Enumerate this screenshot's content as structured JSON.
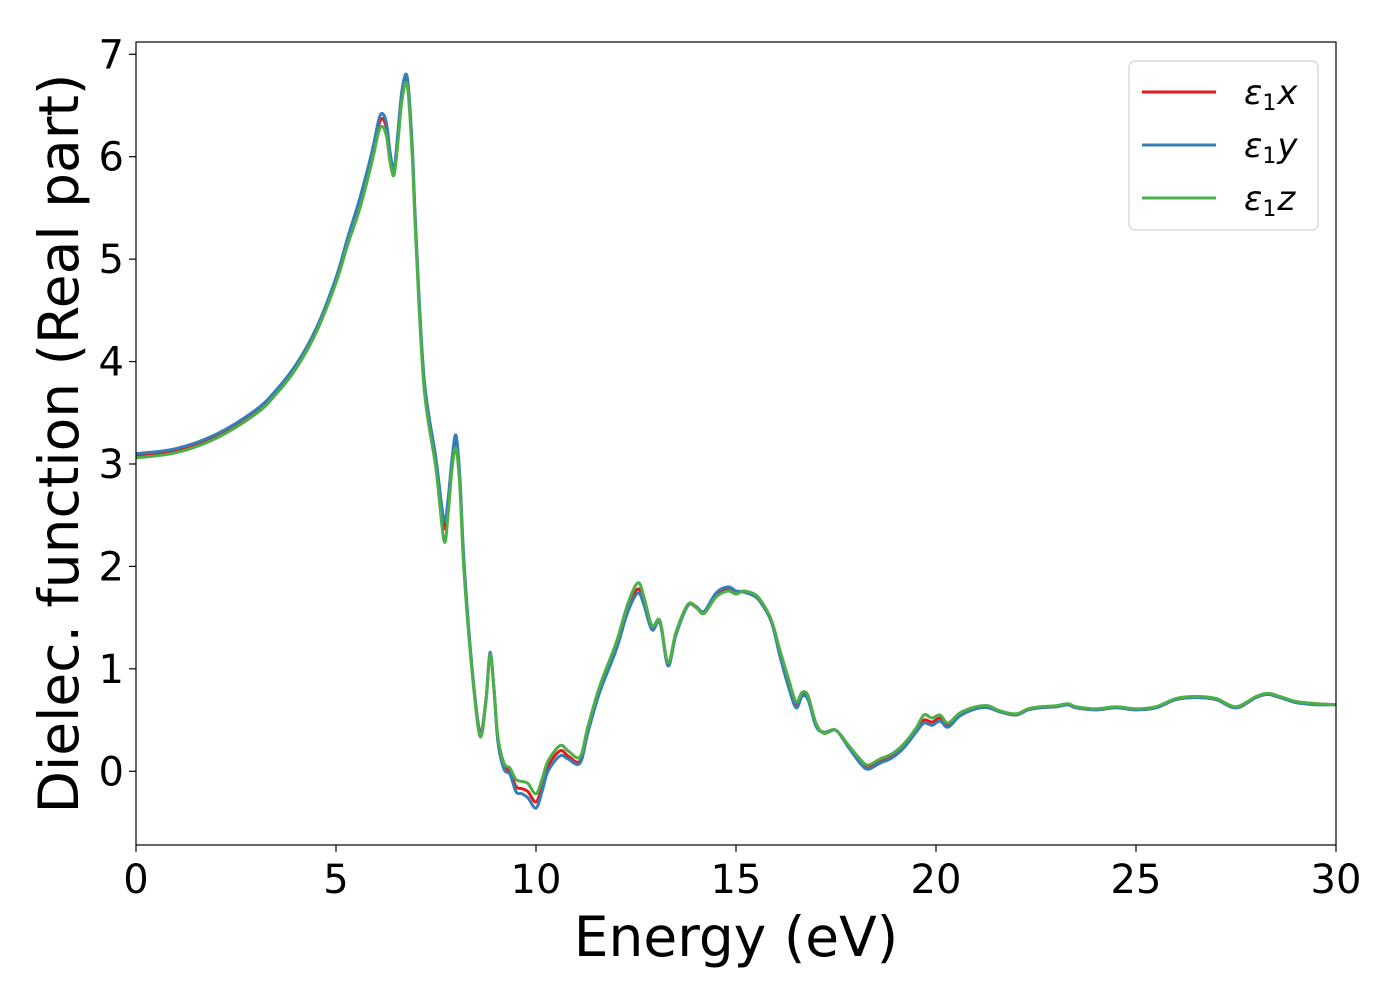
{
  "chart_data": {
    "type": "line",
    "xlabel": "Energy (eV)",
    "ylabel": "Dielec. function (Real part)",
    "xlim": [
      0,
      30
    ],
    "ylim": [
      -0.72,
      7.12
    ],
    "xticks": [
      0,
      5,
      10,
      15,
      20,
      25,
      30
    ],
    "yticks": [
      0,
      1,
      2,
      3,
      4,
      5,
      6,
      7
    ],
    "grid": false,
    "legend_position": "top-right",
    "series": [
      {
        "name": "ε1x",
        "symbol": "ε",
        "sub": "1",
        "suffix": "x",
        "color": "#e41a1c",
        "x": [
          0,
          1,
          2,
          3,
          3.5,
          4,
          4.5,
          5,
          5.3,
          5.6,
          5.9,
          6.1,
          6.25,
          6.35,
          6.45,
          6.55,
          6.65,
          6.78,
          6.9,
          7.0,
          7.2,
          7.5,
          7.7,
          7.8,
          7.9,
          8.0,
          8.1,
          8.2,
          8.4,
          8.6,
          8.75,
          8.85,
          8.95,
          9.05,
          9.2,
          9.35,
          9.5,
          9.65,
          9.8,
          10.0,
          10.15,
          10.3,
          10.6,
          10.8,
          11.1,
          11.3,
          11.6,
          12.0,
          12.3,
          12.55,
          12.7,
          12.9,
          13.1,
          13.3,
          13.5,
          13.8,
          14.0,
          14.2,
          14.5,
          14.8,
          15.0,
          15.2,
          15.5,
          15.7,
          15.9,
          16.1,
          16.3,
          16.5,
          16.65,
          16.8,
          17.0,
          17.2,
          17.5,
          17.8,
          18.1,
          18.3,
          18.6,
          18.9,
          19.2,
          19.5,
          19.7,
          19.9,
          20.1,
          20.3,
          20.6,
          21.0,
          21.3,
          21.6,
          22.0,
          22.3,
          22.6,
          23.0,
          23.3,
          23.5,
          24.0,
          24.5,
          25.0,
          25.5,
          26.0,
          26.5,
          27.0,
          27.5,
          28.0,
          28.3,
          28.6,
          29.0,
          29.5,
          30.0
        ],
        "y": [
          3.08,
          3.13,
          3.27,
          3.51,
          3.7,
          3.95,
          4.3,
          4.8,
          5.2,
          5.55,
          6.0,
          6.35,
          6.3,
          6.0,
          5.85,
          6.2,
          6.6,
          6.75,
          6.1,
          5.2,
          3.8,
          3.0,
          2.38,
          2.6,
          3.0,
          3.25,
          2.8,
          2.0,
          1.0,
          0.38,
          0.7,
          1.15,
          0.8,
          0.3,
          0.05,
          0.0,
          -0.15,
          -0.17,
          -0.2,
          -0.3,
          -0.15,
          0.05,
          0.2,
          0.15,
          0.1,
          0.4,
          0.8,
          1.2,
          1.6,
          1.78,
          1.65,
          1.4,
          1.45,
          1.05,
          1.35,
          1.62,
          1.6,
          1.55,
          1.72,
          1.78,
          1.75,
          1.75,
          1.7,
          1.6,
          1.45,
          1.15,
          0.88,
          0.65,
          0.75,
          0.72,
          0.45,
          0.38,
          0.4,
          0.25,
          0.1,
          0.05,
          0.1,
          0.15,
          0.25,
          0.4,
          0.5,
          0.48,
          0.52,
          0.45,
          0.55,
          0.62,
          0.63,
          0.58,
          0.55,
          0.6,
          0.62,
          0.63,
          0.65,
          0.62,
          0.6,
          0.62,
          0.6,
          0.62,
          0.7,
          0.72,
          0.7,
          0.62,
          0.72,
          0.75,
          0.72,
          0.68,
          0.66,
          0.65
        ]
      },
      {
        "name": "ε1y",
        "symbol": "ε",
        "sub": "1",
        "suffix": "y",
        "color": "#377eb8",
        "x": [
          0,
          1,
          2,
          3,
          3.5,
          4,
          4.5,
          5,
          5.3,
          5.6,
          5.9,
          6.1,
          6.25,
          6.35,
          6.45,
          6.55,
          6.65,
          6.78,
          6.9,
          7.0,
          7.2,
          7.5,
          7.7,
          7.8,
          7.9,
          8.0,
          8.1,
          8.2,
          8.4,
          8.6,
          8.75,
          8.85,
          8.95,
          9.05,
          9.2,
          9.35,
          9.5,
          9.65,
          9.8,
          10.0,
          10.15,
          10.3,
          10.6,
          10.8,
          11.1,
          11.3,
          11.6,
          12.0,
          12.3,
          12.55,
          12.7,
          12.9,
          13.1,
          13.3,
          13.5,
          13.8,
          14.0,
          14.2,
          14.5,
          14.8,
          15.0,
          15.2,
          15.5,
          15.7,
          15.9,
          16.1,
          16.3,
          16.5,
          16.65,
          16.8,
          17.0,
          17.2,
          17.5,
          17.8,
          18.1,
          18.3,
          18.6,
          18.9,
          19.2,
          19.5,
          19.7,
          19.9,
          20.1,
          20.3,
          20.6,
          21.0,
          21.3,
          21.6,
          22.0,
          22.3,
          22.6,
          23.0,
          23.3,
          23.5,
          24.0,
          24.5,
          25.0,
          25.5,
          26.0,
          26.5,
          27.0,
          27.5,
          28.0,
          28.3,
          28.6,
          29.0,
          29.5,
          30.0
        ],
        "y": [
          3.1,
          3.15,
          3.29,
          3.53,
          3.72,
          3.97,
          4.32,
          4.82,
          5.22,
          5.6,
          6.05,
          6.4,
          6.35,
          6.05,
          5.88,
          6.25,
          6.65,
          6.78,
          6.15,
          5.25,
          3.85,
          3.05,
          2.45,
          2.65,
          3.05,
          3.28,
          2.85,
          2.05,
          1.02,
          0.37,
          0.7,
          1.16,
          0.8,
          0.28,
          0.02,
          -0.03,
          -0.2,
          -0.22,
          -0.26,
          -0.36,
          -0.2,
          0.0,
          0.15,
          0.12,
          0.08,
          0.38,
          0.78,
          1.18,
          1.56,
          1.74,
          1.62,
          1.38,
          1.45,
          1.03,
          1.33,
          1.62,
          1.61,
          1.56,
          1.74,
          1.8,
          1.76,
          1.75,
          1.7,
          1.6,
          1.44,
          1.12,
          0.84,
          0.62,
          0.73,
          0.7,
          0.44,
          0.38,
          0.4,
          0.24,
          0.08,
          0.02,
          0.08,
          0.13,
          0.23,
          0.38,
          0.47,
          0.45,
          0.49,
          0.43,
          0.54,
          0.61,
          0.62,
          0.58,
          0.55,
          0.6,
          0.62,
          0.63,
          0.65,
          0.62,
          0.6,
          0.62,
          0.6,
          0.62,
          0.7,
          0.72,
          0.7,
          0.62,
          0.72,
          0.75,
          0.72,
          0.67,
          0.65,
          0.65
        ]
      },
      {
        "name": "ε1z",
        "symbol": "ε",
        "sub": "1",
        "suffix": "z",
        "color": "#4daf4a",
        "x": [
          0,
          1,
          2,
          3,
          3.5,
          4,
          4.5,
          5,
          5.3,
          5.6,
          5.9,
          6.1,
          6.25,
          6.35,
          6.45,
          6.55,
          6.65,
          6.78,
          6.9,
          7.0,
          7.2,
          7.5,
          7.7,
          7.8,
          7.9,
          8.0,
          8.1,
          8.2,
          8.4,
          8.6,
          8.75,
          8.85,
          8.95,
          9.05,
          9.2,
          9.35,
          9.5,
          9.65,
          9.8,
          10.0,
          10.15,
          10.3,
          10.6,
          10.8,
          11.1,
          11.3,
          11.6,
          12.0,
          12.3,
          12.55,
          12.7,
          12.9,
          13.1,
          13.3,
          13.5,
          13.8,
          14.0,
          14.2,
          14.5,
          14.8,
          15.0,
          15.2,
          15.5,
          15.7,
          15.9,
          16.1,
          16.3,
          16.5,
          16.65,
          16.8,
          17.0,
          17.2,
          17.5,
          17.8,
          18.1,
          18.3,
          18.6,
          18.9,
          19.2,
          19.5,
          19.7,
          19.9,
          20.1,
          20.3,
          20.6,
          21.0,
          21.3,
          21.6,
          22.0,
          22.3,
          22.6,
          23.0,
          23.3,
          23.5,
          24.0,
          24.5,
          25.0,
          25.5,
          26.0,
          26.5,
          27.0,
          27.5,
          28.0,
          28.3,
          28.6,
          29.0,
          29.5,
          30.0
        ],
        "y": [
          3.06,
          3.11,
          3.25,
          3.49,
          3.68,
          3.93,
          4.28,
          4.77,
          5.15,
          5.5,
          5.95,
          6.28,
          6.22,
          5.95,
          5.82,
          6.15,
          6.55,
          6.7,
          6.05,
          5.15,
          3.75,
          2.95,
          2.25,
          2.5,
          2.95,
          3.15,
          2.75,
          1.95,
          0.98,
          0.34,
          0.68,
          1.14,
          0.8,
          0.33,
          0.08,
          0.03,
          -0.08,
          -0.1,
          -0.12,
          -0.22,
          -0.08,
          0.1,
          0.25,
          0.2,
          0.14,
          0.44,
          0.84,
          1.25,
          1.64,
          1.84,
          1.7,
          1.42,
          1.47,
          1.06,
          1.36,
          1.63,
          1.6,
          1.54,
          1.7,
          1.76,
          1.73,
          1.76,
          1.72,
          1.62,
          1.46,
          1.18,
          0.92,
          0.68,
          0.77,
          0.74,
          0.47,
          0.37,
          0.4,
          0.26,
          0.12,
          0.06,
          0.12,
          0.17,
          0.27,
          0.42,
          0.55,
          0.52,
          0.55,
          0.47,
          0.57,
          0.63,
          0.64,
          0.59,
          0.56,
          0.61,
          0.63,
          0.64,
          0.66,
          0.63,
          0.61,
          0.63,
          0.61,
          0.63,
          0.71,
          0.73,
          0.71,
          0.63,
          0.73,
          0.76,
          0.73,
          0.68,
          0.66,
          0.65
        ]
      }
    ]
  }
}
